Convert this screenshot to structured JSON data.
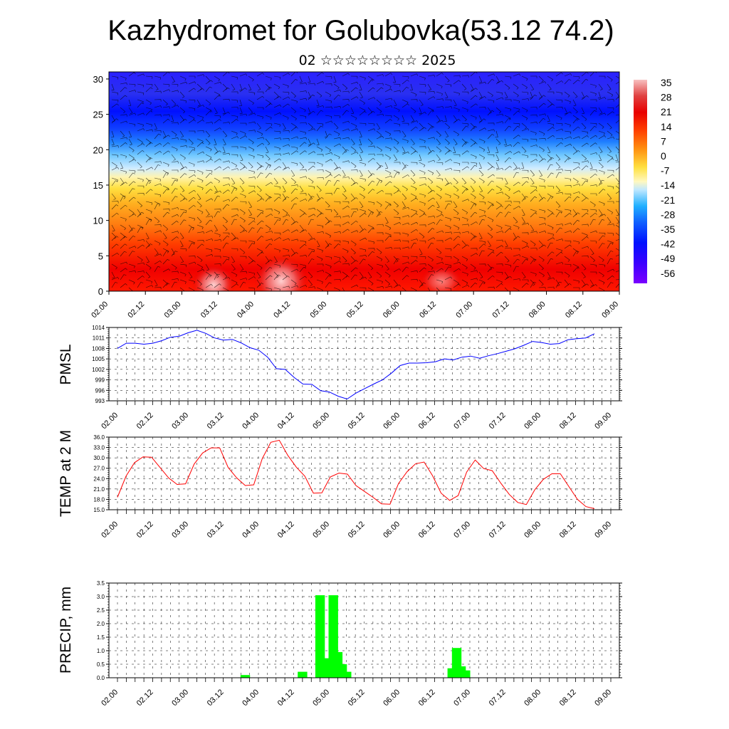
{
  "page": {
    "title": "Kazhydromet for Golubovka(53.12 74.2)",
    "subtitle": "02 ☆☆☆☆☆☆☆☆ 2025"
  },
  "colors": {
    "pmsl_line": "#0000ff",
    "temp_line": "#ff0000",
    "precip_bar": "#00ff00",
    "colorbar": [
      "#7a00ff",
      "#3a00ff",
      "#0010ff",
      "#1050ff",
      "#1890ff",
      "#30c0ff",
      "#90e0ff",
      "#d8f0ff",
      "#fff8c0",
      "#ffe040",
      "#ffc020",
      "#ff9010",
      "#ff5000",
      "#ff1800",
      "#e00000",
      "#f05050",
      "#f8b0b0"
    ]
  },
  "chart_data": [
    {
      "type": "heatmap",
      "name": "cross-section",
      "x_ticks": [
        "02.00",
        "02.12",
        "03.00",
        "03.12",
        "04.00",
        "04.12",
        "05.00",
        "05.12",
        "06.00",
        "06.12",
        "07.00",
        "07.12",
        "08.00",
        "08.12",
        "09.00"
      ],
      "y_ticks": [
        "0",
        "5",
        "10",
        "15",
        "20",
        "25",
        "30"
      ],
      "ylim": [
        0,
        31
      ],
      "colorbar_labels": [
        "35",
        "28",
        "21",
        "14",
        "7",
        "0",
        "-7",
        "-14",
        "-21",
        "-28",
        "-35",
        "-42",
        "-49",
        "-56"
      ]
    },
    {
      "type": "line",
      "ylabel": "PMSL",
      "x_ticks": [
        "02.00",
        "02.12",
        "03.00",
        "03.12",
        "04.00",
        "04.12",
        "05.00",
        "05.12",
        "06.00",
        "06.12",
        "07.00",
        "07.12",
        "08.00",
        "08.12",
        "09.00"
      ],
      "y_ticks": [
        "1014",
        "1011",
        "1008",
        "1005",
        "1002",
        "999",
        "996",
        "993"
      ],
      "ylim": [
        993,
        1014
      ],
      "values": [
        1008,
        1009.5,
        1009.5,
        1009.2,
        1009.5,
        1010.2,
        1011.2,
        1011.5,
        1012.5,
        1013.2,
        1012.3,
        1011,
        1010.4,
        1010.6,
        1009.6,
        1008.2,
        1007.5,
        1005.5,
        1002.2,
        1002,
        999.7,
        997.8,
        997.7,
        995.9,
        995.5,
        994.3,
        993.5,
        995.2,
        996.5,
        997.8,
        999,
        1000.9,
        1003.1,
        1003.8,
        1003.8,
        1003.9,
        1004.2,
        1005,
        1004.7,
        1005.5,
        1005.8,
        1005.2,
        1005.9,
        1006.5,
        1007.2,
        1007.9,
        1008.9,
        1010,
        1009.7,
        1009.2,
        1009.4,
        1010.5,
        1010.8,
        1011,
        1012.2
      ]
    },
    {
      "type": "line",
      "ylabel": "TEMP at 2 M",
      "x_ticks": [
        "02.00",
        "02.12",
        "03.00",
        "03.12",
        "04.00",
        "04.12",
        "05.00",
        "05.12",
        "06.00",
        "06.12",
        "07.00",
        "07.12",
        "08.00",
        "08.12",
        "09.00"
      ],
      "y_ticks": [
        "36.0",
        "33.0",
        "30.0",
        "27.0",
        "24.0",
        "21.0",
        "18.0",
        "15.0"
      ],
      "ylim": [
        15,
        36
      ],
      "values": [
        18.6,
        24.7,
        28.6,
        30.3,
        30.2,
        27.2,
        24.2,
        22.3,
        22.5,
        28.2,
        31.4,
        32.9,
        32.9,
        27.2,
        24.2,
        22,
        22.2,
        29.8,
        34.5,
        35.1,
        30.7,
        27.3,
        24.7,
        19.8,
        19.9,
        24.5,
        25.6,
        25.3,
        22,
        20.3,
        18.6,
        16.7,
        16.6,
        22.6,
        26,
        28.3,
        28.8,
        24.8,
        19.8,
        17.7,
        19.1,
        25.9,
        29.4,
        26.9,
        26.3,
        22.7,
        19.4,
        17.1,
        16.5,
        20.8,
        23.8,
        25.4,
        25.4,
        21.7,
        18,
        15.9,
        15.3
      ]
    },
    {
      "type": "bar",
      "ylabel": "PRECIP, mm",
      "x_ticks": [
        "02.00",
        "02.12",
        "03.00",
        "03.12",
        "04.00",
        "04.12",
        "05.00",
        "05.12",
        "06.00",
        "06.12",
        "07.00",
        "07.12",
        "08.00",
        "08.12",
        "09.00"
      ],
      "y_ticks": [
        "3.5",
        "3.0",
        "2.5",
        "2.0",
        "1.5",
        "1.0",
        "0.5",
        "0.0"
      ],
      "ylim": [
        0,
        3.5
      ],
      "values": [
        0,
        0,
        0,
        0,
        0,
        0,
        0,
        0,
        0,
        0,
        0,
        0,
        0,
        0,
        0,
        0,
        0,
        0,
        0,
        0,
        0,
        0,
        0,
        0,
        0,
        0,
        0,
        0,
        0.1,
        0,
        0,
        0,
        0,
        0,
        0,
        0,
        0,
        0,
        0,
        0,
        0,
        0.22,
        0.02,
        0,
        0,
        3.05,
        0.72,
        0,
        3.05,
        0.95,
        0.5,
        0.22,
        0,
        0,
        0,
        0,
        0,
        0,
        0,
        0,
        0,
        0,
        0,
        0,
        0,
        0,
        0,
        0,
        0,
        0,
        0,
        0,
        0,
        0,
        0,
        0.35,
        1.1,
        0.42,
        0.27,
        0,
        0,
        0,
        0,
        0,
        0,
        0,
        0,
        0,
        0,
        0,
        0,
        0,
        0,
        0,
        0,
        0,
        0,
        0,
        0,
        0,
        0,
        0,
        0,
        0,
        0,
        0,
        0,
        0,
        0,
        0,
        0,
        0,
        0
      ]
    }
  ]
}
